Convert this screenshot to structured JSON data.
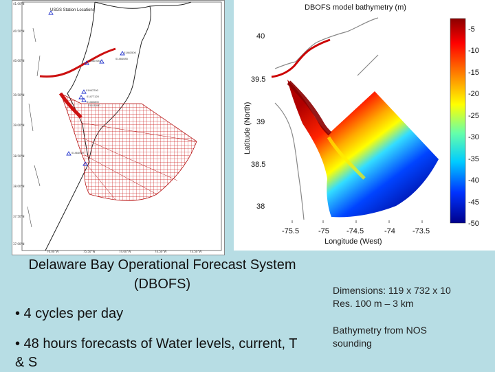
{
  "left_map": {
    "legend": "USGS Station Locations",
    "lat_ticks": [
      "41.00°N",
      "40.50°N",
      "40.00°N",
      "39.50°N",
      "39.00°N",
      "38.50°N",
      "38.00°N",
      "37.50°N",
      "37.00°N"
    ],
    "lon_ticks": [
      "76.00°W",
      "75.50°W",
      "74.00°W",
      "74.50°W",
      "73.50°W"
    ],
    "stations": [
      "01463500",
      "01467200",
      "01477120",
      "01482800",
      "01467087",
      "01464000",
      "01411000",
      "01484085"
    ]
  },
  "bathy_map": {
    "title": "DBOFS model bathymetry (m)",
    "xlabel": "Longitude (West)",
    "ylabel": "Latitude (North)",
    "lat_ticks": [
      "40",
      "39.5",
      "39",
      "38.5",
      "38"
    ],
    "lon_ticks": [
      "-75.5",
      "-75",
      "-74.5",
      "-74",
      "-73.5"
    ],
    "colorbar_ticks": [
      "-5",
      "-10",
      "-15",
      "-20",
      "-25",
      "-30",
      "-35",
      "-40",
      "-45",
      "-50"
    ],
    "colors": {
      "shallow": "#8b0000",
      "mid": "#ffff00",
      "deep": "#00008b"
    }
  },
  "text": {
    "title": "Delaware Bay Operational Forecast System (DBOFS)",
    "bullet1": "• 4 cycles per day",
    "bullet2": "• 48 hours forecasts of Water levels, current, T & S",
    "dims": "Dimensions: 119 x 732 x 10",
    "res": "Res. 100 m – 3 km",
    "bathy_source": "Bathymetry from NOS sounding"
  }
}
